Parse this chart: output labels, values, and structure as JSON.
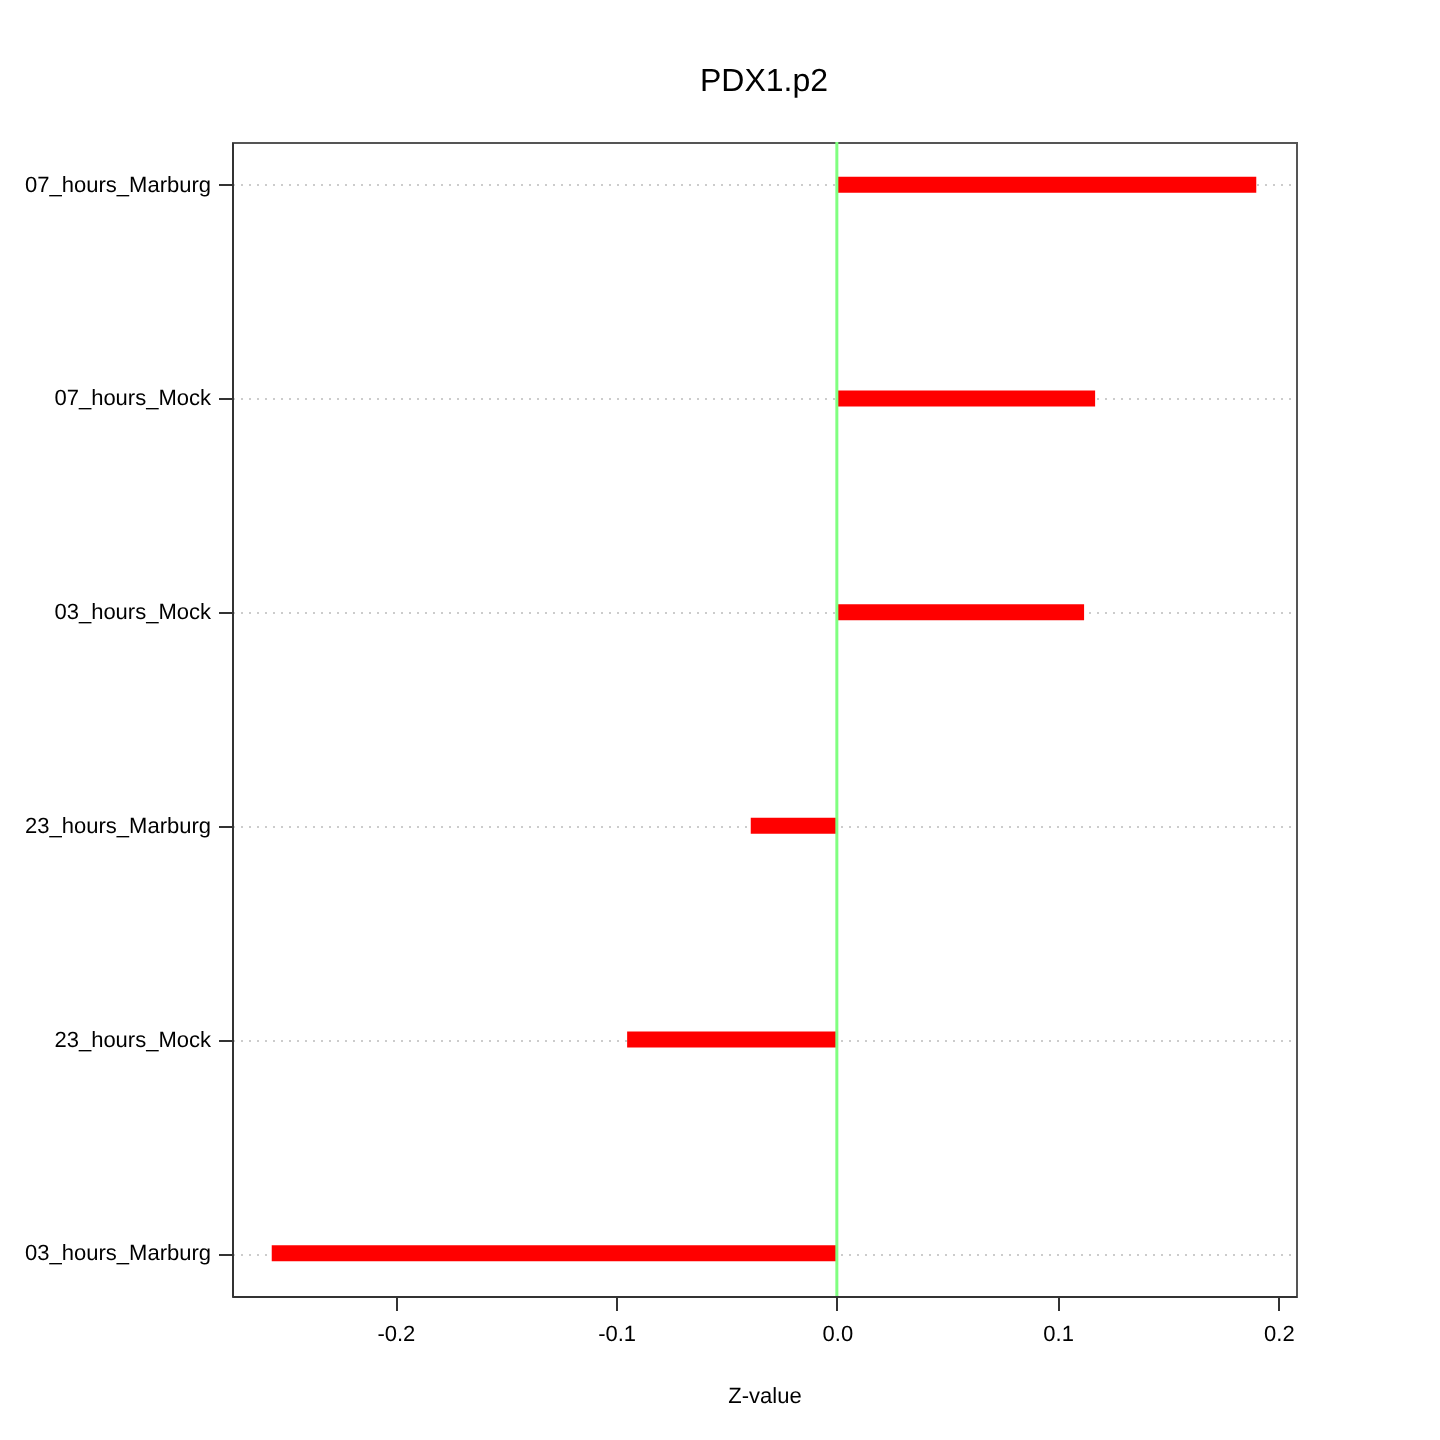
{
  "chart_data": {
    "type": "bar",
    "title": "PDX1.p2",
    "xlabel": "Z-value",
    "orientation": "horizontal",
    "categories": [
      "07_hours_Marburg",
      "07_hours_Mock",
      "03_hours_Mock",
      "23_hours_Marburg",
      "23_hours_Mock",
      "03_hours_Marburg"
    ],
    "values": [
      0.19,
      0.117,
      0.112,
      -0.039,
      -0.095,
      -0.256
    ],
    "color": "#ff0000",
    "xlim": [
      -0.274,
      0.208
    ],
    "xticks": [
      -0.2,
      -0.1,
      {
        "value": 0,
        "label": "0.0"
      },
      0.1,
      0.2
    ],
    "ref_lines": [
      {
        "axis": "x",
        "value": 0,
        "color": "#80ff80"
      }
    ],
    "grid": "y"
  }
}
